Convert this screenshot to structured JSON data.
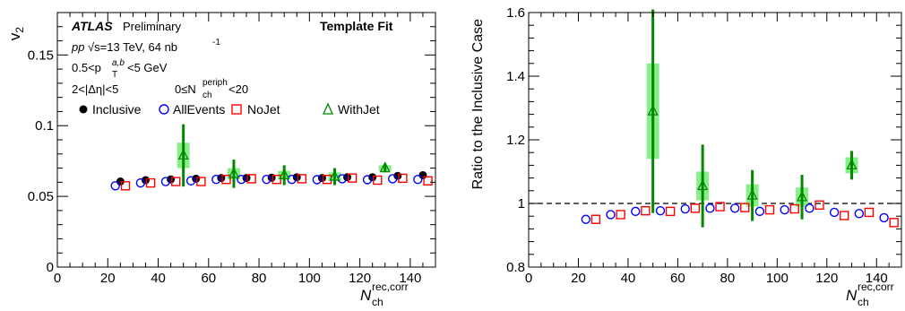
{
  "chart_data": [
    {
      "type": "scatter",
      "title": "",
      "xlabel": "N_ch^rec,corr",
      "ylabel": "v_2",
      "xlim": [
        0,
        150
      ],
      "ylim": [
        0,
        0.18
      ],
      "x_ticks": [
        "0",
        "20",
        "40",
        "60",
        "80",
        "100",
        "120",
        "140"
      ],
      "y_ticks": [
        "0",
        "0.05",
        "0.1",
        "0.15"
      ],
      "annotations": {
        "atlas": "ATLAS",
        "status": "Preliminary",
        "method": "Template Fit",
        "collision_pp": "pp",
        "collision_energy": "√s=13 TeV, 64 nb",
        "collision_energy_sup": "-1",
        "pt_lo": "0.5<p",
        "pt_sup": "a,b",
        "pt_sub": "T",
        "pt_hi": "<5 GeV",
        "eta_cut": "2<|Δη|<5",
        "nch_lo": "0≤N",
        "nch_sup": "periph",
        "nch_sub": "ch",
        "nch_hi": "<20"
      },
      "legend": [
        "Inclusive",
        "AllEvents",
        "NoJet",
        "WithJet"
      ],
      "legend_position": "top-left, inside plot",
      "series": [
        {
          "name": "Inclusive",
          "marker": "filled-circle",
          "color": "#000000",
          "x": [
            25,
            35,
            45,
            55,
            65,
            75,
            85,
            95,
            105,
            115,
            125,
            135,
            145
          ],
          "y": [
            0.0605,
            0.0615,
            0.062,
            0.0625,
            0.063,
            0.063,
            0.0632,
            0.0635,
            0.063,
            0.0635,
            0.0635,
            0.0645,
            0.065
          ]
        },
        {
          "name": "AllEvents",
          "marker": "open-circle",
          "color": "#0000ff",
          "x": [
            23,
            33,
            43,
            53,
            63,
            73,
            83,
            93,
            103,
            113,
            123,
            133,
            143
          ],
          "y": [
            0.0575,
            0.0595,
            0.0605,
            0.061,
            0.062,
            0.062,
            0.062,
            0.062,
            0.0618,
            0.0625,
            0.0618,
            0.0625,
            0.062
          ]
        },
        {
          "name": "NoJet",
          "marker": "open-square",
          "color": "#ff0000",
          "x": [
            27,
            37,
            47,
            57,
            67,
            77,
            87,
            97,
            107,
            117,
            127,
            137,
            147
          ],
          "y": [
            0.0575,
            0.0595,
            0.0605,
            0.0605,
            0.062,
            0.0625,
            0.062,
            0.0625,
            0.062,
            0.063,
            0.0615,
            0.0628,
            0.061
          ]
        },
        {
          "name": "WithJet",
          "marker": "open-triangle",
          "color": "#008800",
          "box_color": "#88ee88",
          "x": [
            50,
            70,
            90,
            110,
            130
          ],
          "y": [
            0.079,
            0.066,
            0.065,
            0.064,
            0.07
          ],
          "stat_err": [
            0.022,
            0.01,
            0.007,
            0.006,
            0.003
          ],
          "syst_err": [
            0.009,
            0.004,
            0.003,
            0.003,
            0.002
          ]
        }
      ]
    },
    {
      "type": "scatter",
      "title": "",
      "xlabel": "N_ch^rec,corr",
      "ylabel": "Ratio to the Inclusive Case",
      "xlim": [
        0,
        150
      ],
      "ylim": [
        0.8,
        1.6
      ],
      "x_ticks": [
        "0",
        "20",
        "40",
        "60",
        "80",
        "100",
        "120",
        "140"
      ],
      "y_ticks": [
        "0.8",
        "1",
        "1.2",
        "1.4",
        "1.6"
      ],
      "reference_line": 1.0,
      "series": [
        {
          "name": "AllEvents",
          "marker": "open-circle",
          "color": "#0000ff",
          "x": [
            23,
            33,
            43,
            53,
            63,
            73,
            83,
            93,
            103,
            113,
            123,
            133,
            143
          ],
          "y": [
            0.95,
            0.965,
            0.975,
            0.977,
            0.983,
            0.985,
            0.985,
            0.975,
            0.98,
            0.985,
            0.972,
            0.968,
            0.955
          ]
        },
        {
          "name": "NoJet",
          "marker": "open-square",
          "color": "#ff0000",
          "x": [
            27,
            37,
            47,
            57,
            67,
            77,
            87,
            97,
            107,
            117,
            127,
            137,
            147
          ],
          "y": [
            0.95,
            0.965,
            0.977,
            0.975,
            0.985,
            0.99,
            0.987,
            0.98,
            0.983,
            0.995,
            0.962,
            0.972,
            0.94
          ]
        },
        {
          "name": "WithJet",
          "marker": "open-triangle",
          "color": "#008800",
          "box_color": "#88ee88",
          "x": [
            50,
            70,
            90,
            110,
            130
          ],
          "y": [
            1.29,
            1.055,
            1.025,
            1.02,
            1.12
          ],
          "stat_err": [
            0.32,
            0.13,
            0.08,
            0.07,
            0.045
          ],
          "syst_err": [
            0.15,
            0.045,
            0.035,
            0.03,
            0.025
          ]
        }
      ]
    }
  ]
}
